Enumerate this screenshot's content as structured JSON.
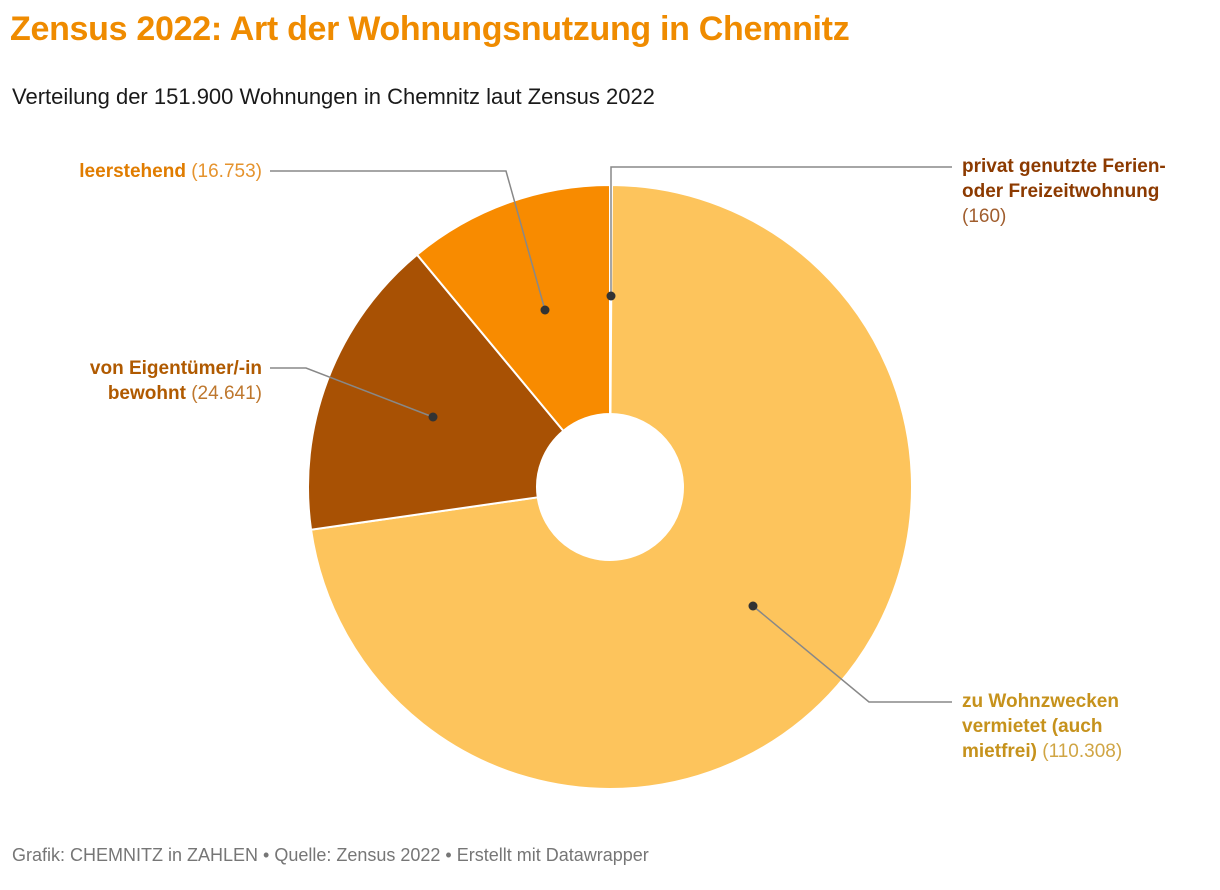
{
  "header": {
    "title": "Zensus 2022: Art der Wohnungsnutzung in Chemnitz",
    "subtitle": "Verteilung der 151.900 Wohnungen in Chemnitz laut Zensus 2022"
  },
  "footer": {
    "text": "Grafik: CHEMNITZ in ZAHLEN • Quelle: Zensus 2022 • Erstellt mit Datawrapper"
  },
  "chart_data": {
    "type": "pie",
    "subtype": "donut",
    "title": "Zensus 2022: Art der Wohnungsnutzung in Chemnitz",
    "total_units_text": "151.900 Wohnungen",
    "start_angle_deg": 0,
    "direction": "clockwise",
    "donut_hole_ratio": 0.24,
    "legend": "none (direct callout labels with leader lines)",
    "slices": [
      {
        "label": "privat genutzte Ferien- oder Freizeitwohnung",
        "value": 160,
        "value_display": "(160)",
        "color": "#8a3c00",
        "label_color": "#8c3a00"
      },
      {
        "label": "zu Wohnzwecken vermietet (auch mietfrei)",
        "value": 110308,
        "value_display": "(110.308)",
        "color": "#fdc45c",
        "label_color": "#c6921c"
      },
      {
        "label": "von Eigentümer/-in bewohnt",
        "value": 24641,
        "value_display": "(24.641)",
        "color": "#a85104",
        "label_color": "#b05a00"
      },
      {
        "label": "leerstehend",
        "value": 16753,
        "value_display": "(16.753)",
        "color": "#f88b00",
        "label_color": "#e07c00"
      }
    ]
  }
}
